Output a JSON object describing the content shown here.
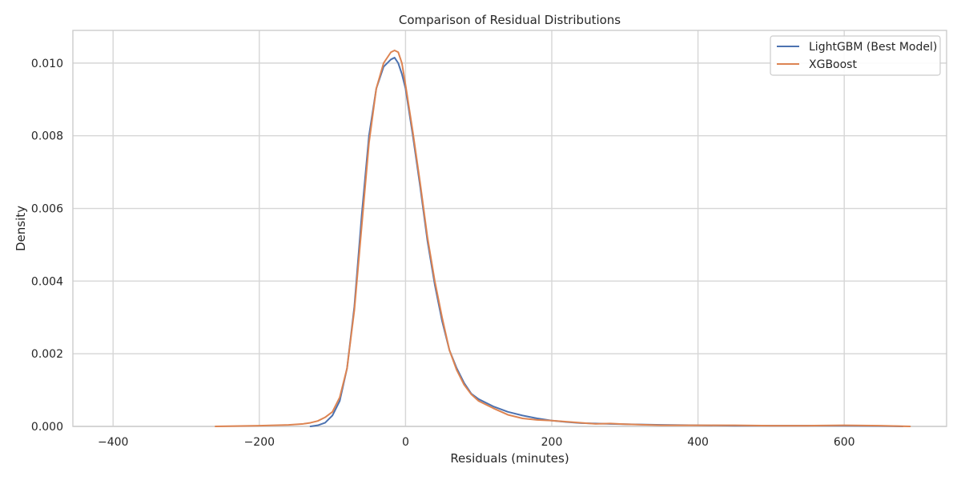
{
  "chart_data": {
    "type": "line",
    "title": "Comparison of Residual Distributions",
    "xlabel": "Residuals (minutes)",
    "ylabel": "Density",
    "xlim": [
      -455,
      740
    ],
    "ylim": [
      0,
      0.0109
    ],
    "xticks": [
      -400,
      -200,
      0,
      200,
      400,
      600
    ],
    "xtick_labels": [
      "−400",
      "−200",
      "0",
      "200",
      "400",
      "600"
    ],
    "yticks": [
      0,
      0.002,
      0.004,
      0.006,
      0.008,
      0.01
    ],
    "ytick_labels": [
      "0.000",
      "0.002",
      "0.004",
      "0.006",
      "0.008",
      "0.010"
    ],
    "grid": true,
    "legend_position": "top-right",
    "series": [
      {
        "name": "LightGBM (Best Model)",
        "color": "#4c72b0",
        "points": [
          [
            -130,
            0.0
          ],
          [
            -120,
            3e-05
          ],
          [
            -110,
            0.0001
          ],
          [
            -100,
            0.0003
          ],
          [
            -90,
            0.0007
          ],
          [
            -80,
            0.0016
          ],
          [
            -70,
            0.0033
          ],
          [
            -60,
            0.0058
          ],
          [
            -50,
            0.008
          ],
          [
            -40,
            0.0093
          ],
          [
            -30,
            0.0099
          ],
          [
            -20,
            0.0101
          ],
          [
            -15,
            0.01015
          ],
          [
            -10,
            0.01
          ],
          [
            -5,
            0.0097
          ],
          [
            0,
            0.0093
          ],
          [
            10,
            0.008
          ],
          [
            20,
            0.0066
          ],
          [
            30,
            0.0051
          ],
          [
            40,
            0.0039
          ],
          [
            50,
            0.0029
          ],
          [
            60,
            0.0021
          ],
          [
            70,
            0.0016
          ],
          [
            80,
            0.0012
          ],
          [
            90,
            0.0009
          ],
          [
            100,
            0.00075
          ],
          [
            120,
            0.00055
          ],
          [
            140,
            0.0004
          ],
          [
            160,
            0.0003
          ],
          [
            180,
            0.00022
          ],
          [
            200,
            0.00016
          ],
          [
            220,
            0.00012
          ],
          [
            240,
            9e-05
          ],
          [
            260,
            8e-05
          ],
          [
            280,
            7e-05
          ],
          [
            300,
            6e-05
          ],
          [
            350,
            4e-05
          ],
          [
            400,
            3e-05
          ],
          [
            450,
            2e-05
          ],
          [
            500,
            2e-05
          ],
          [
            550,
            2e-05
          ],
          [
            600,
            2e-05
          ],
          [
            650,
            1e-05
          ],
          [
            680,
            0.0
          ]
        ]
      },
      {
        "name": "XGBoost",
        "color": "#dd8452",
        "points": [
          [
            -260,
            0.0
          ],
          [
            -200,
            2e-05
          ],
          [
            -160,
            4e-05
          ],
          [
            -140,
            7e-05
          ],
          [
            -130,
            0.0001
          ],
          [
            -120,
            0.00015
          ],
          [
            -110,
            0.00025
          ],
          [
            -100,
            0.0004
          ],
          [
            -90,
            0.0008
          ],
          [
            -80,
            0.0016
          ],
          [
            -70,
            0.0032
          ],
          [
            -60,
            0.0055
          ],
          [
            -50,
            0.0078
          ],
          [
            -40,
            0.0093
          ],
          [
            -30,
            0.01
          ],
          [
            -20,
            0.0103
          ],
          [
            -15,
            0.01035
          ],
          [
            -10,
            0.0103
          ],
          [
            -5,
            0.01
          ],
          [
            0,
            0.0094
          ],
          [
            10,
            0.0081
          ],
          [
            20,
            0.0067
          ],
          [
            30,
            0.0052
          ],
          [
            40,
            0.004
          ],
          [
            50,
            0.003
          ],
          [
            60,
            0.0021
          ],
          [
            70,
            0.00155
          ],
          [
            80,
            0.00115
          ],
          [
            90,
            0.00088
          ],
          [
            100,
            0.0007
          ],
          [
            120,
            0.0005
          ],
          [
            140,
            0.00032
          ],
          [
            160,
            0.00022
          ],
          [
            180,
            0.00018
          ],
          [
            200,
            0.00016
          ],
          [
            220,
            0.00013
          ],
          [
            240,
            0.0001
          ],
          [
            260,
            7e-05
          ],
          [
            280,
            8e-05
          ],
          [
            300,
            6e-05
          ],
          [
            350,
            3e-05
          ],
          [
            400,
            3e-05
          ],
          [
            450,
            3e-05
          ],
          [
            500,
            2e-05
          ],
          [
            550,
            2e-05
          ],
          [
            600,
            3e-05
          ],
          [
            650,
            2e-05
          ],
          [
            690,
            0.0
          ]
        ]
      }
    ]
  }
}
